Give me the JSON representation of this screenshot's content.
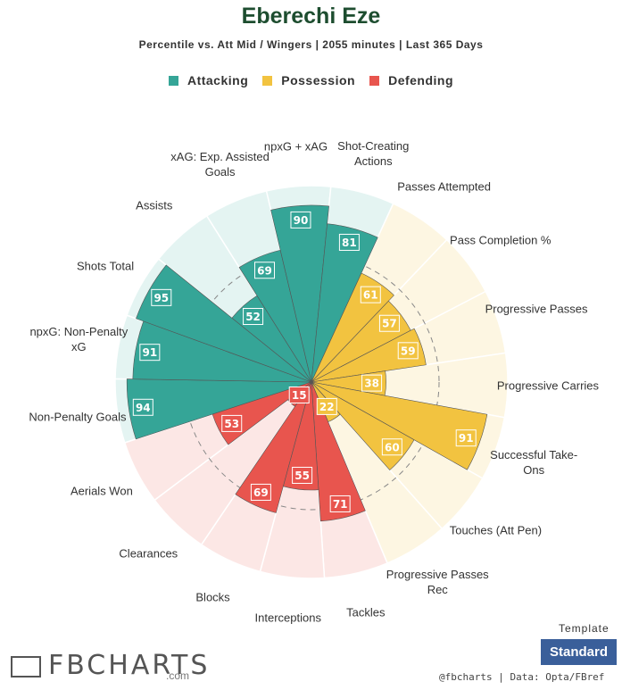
{
  "chart_data": {
    "type": "pizza",
    "title": "Eberechi Eze",
    "subtitle": "Percentile vs. Att Mid / Wingers | 2055 minutes | Last 365 Days",
    "rlim": [
      0,
      100
    ],
    "rticks": [
      65
    ],
    "series": [
      {
        "name": "Attacking",
        "color": "#35a597",
        "background": "#e4f4f2",
        "categories": [
          "Non-Penalty Goals",
          "npxG: Non-Penalty xG",
          "Shots Total",
          "Assists",
          "xAG: Exp. Assisted Goals",
          "npxG + xAG",
          "Shot-Creating Actions"
        ],
        "values": [
          94,
          91,
          95,
          52,
          69,
          90,
          81
        ]
      },
      {
        "name": "Possession",
        "color": "#f2c340",
        "background": "#fdf6e2",
        "categories": [
          "Passes Attempted",
          "Pass Completion %",
          "Progressive Passes",
          "Progressive Carries",
          "Successful Take-Ons",
          "Touches (Att Pen)",
          "Progressive Passes Rec"
        ],
        "values": [
          61,
          57,
          59,
          38,
          91,
          60,
          22
        ]
      },
      {
        "name": "Defending",
        "color": "#e8554e",
        "background": "#fce7e5",
        "categories": [
          "Tackles",
          "Interceptions",
          "Blocks",
          "Clearances",
          "Aerials Won"
        ],
        "values": [
          71,
          55,
          69,
          15,
          53
        ]
      }
    ]
  },
  "footer": {
    "logo": "FBCHARTS",
    "logo_suffix": ".com",
    "template_label": "Template",
    "template_button": "Standard",
    "credit": "@fbcharts  |  Data: Opta/FBref"
  }
}
